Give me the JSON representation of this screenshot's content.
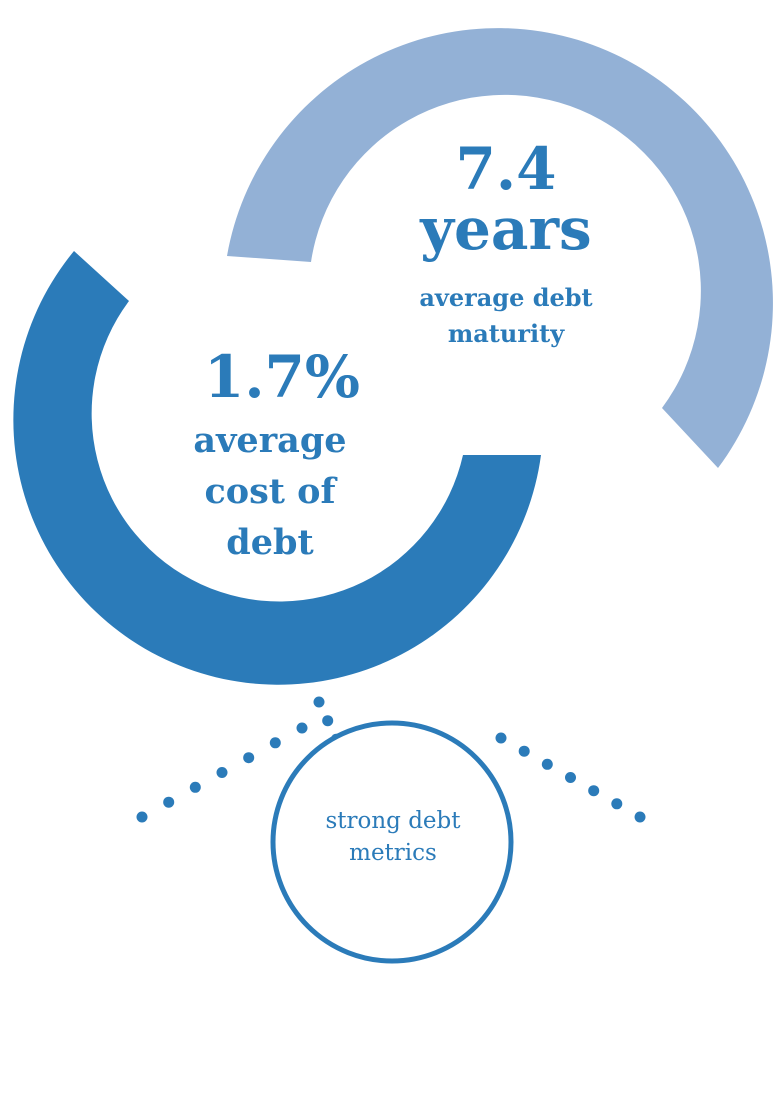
{
  "colors": {
    "primary": "#2b7bb9",
    "light": "#93b1d6",
    "background": "#ffffff"
  },
  "maturity": {
    "value": "7.4",
    "unit": "years",
    "label_line1": "average debt",
    "label_line2": "maturity"
  },
  "cost": {
    "value": "1.7%",
    "label_line1": "average",
    "label_line2": "cost of",
    "label_line3": "debt"
  },
  "hub": {
    "label_line1": "strong debt",
    "label_line2": "metrics"
  }
}
